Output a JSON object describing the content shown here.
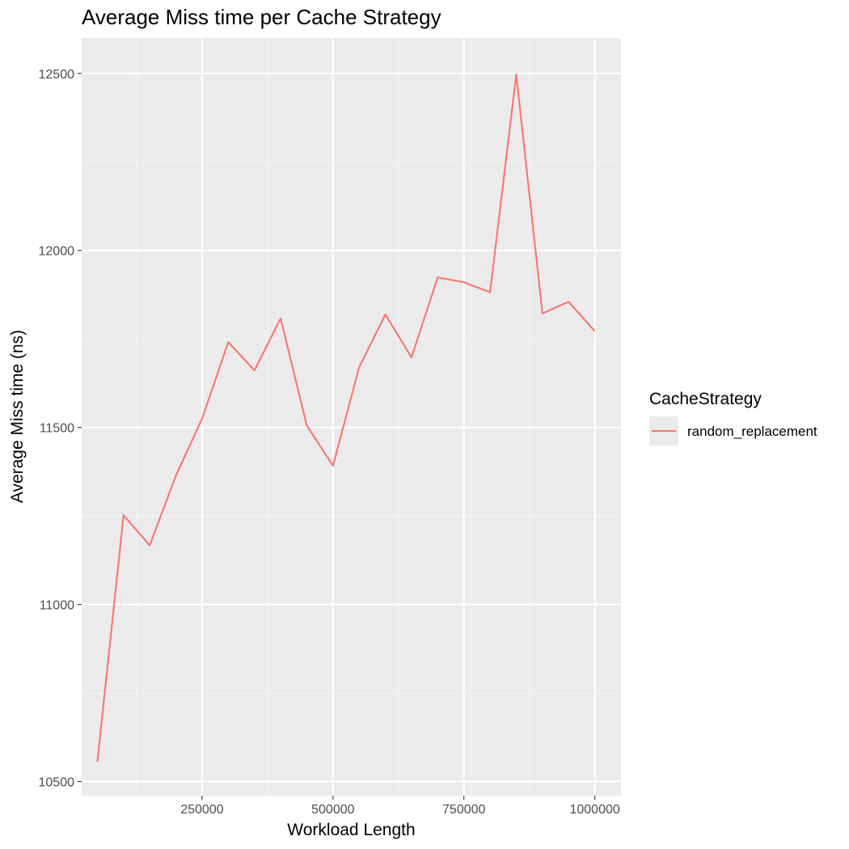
{
  "chart_data": {
    "type": "line",
    "title": "Average Miss time per Cache Strategy",
    "xlabel": "Workload Length",
    "ylabel": "Average Miss time (ns)",
    "xlim": [
      20000,
      1050000
    ],
    "ylim": [
      10460,
      12600
    ],
    "x_ticks": [
      250000,
      500000,
      750000,
      1000000
    ],
    "x_tick_labels": [
      "250000",
      "500000",
      "750000",
      "1000000"
    ],
    "y_ticks": [
      10500,
      11000,
      11500,
      12000,
      12500
    ],
    "y_tick_labels": [
      "10500",
      "11000",
      "11500",
      "12000",
      "12500"
    ],
    "grid": true,
    "legend": {
      "title": "CacheStrategy",
      "placement": "right",
      "entries": [
        "random_replacement"
      ]
    },
    "series": [
      {
        "name": "random_replacement",
        "color": "#F8766D",
        "x": [
          50000,
          100000,
          150000,
          200000,
          250000,
          300000,
          350000,
          400000,
          450000,
          500000,
          550000,
          600000,
          650000,
          700000,
          750000,
          800000,
          850000,
          900000,
          950000,
          1000000
        ],
        "values": [
          10555,
          11252,
          11167,
          11364,
          11525,
          11741,
          11661,
          11808,
          11505,
          11392,
          11670,
          11819,
          11698,
          11924,
          11910,
          11882,
          12497,
          11822,
          11855,
          11772
        ]
      }
    ]
  },
  "colors": {
    "panel_background": "#EBEBEB",
    "grid_major": "#FFFFFF",
    "grid_minor": "#F4F4F4",
    "series_line": "#F8766D",
    "tick_mark": "#333333"
  }
}
